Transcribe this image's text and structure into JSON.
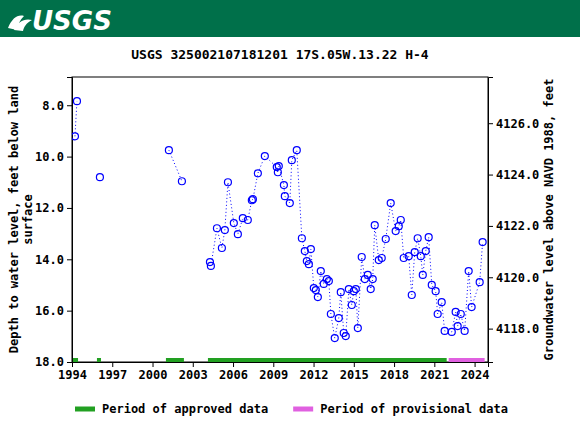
{
  "header": {
    "text": "USGS"
  },
  "chart_data": {
    "type": "scatter",
    "title": "USGS 325002107181201 17S.05W.13.22 H-4",
    "ylabel": [
      "Depth to water level, feet below land",
      "surface"
    ],
    "y2label": "Groundwater level above NAVD 1988, feet",
    "xlim": [
      1994,
      2025
    ],
    "xticks": [
      1994,
      1997,
      2000,
      2003,
      2006,
      2009,
      2012,
      2015,
      2018,
      2021,
      2024
    ],
    "ylim": [
      18.0,
      6.9
    ],
    "yticks": [
      {
        "value": 8,
        "label": "8.0"
      },
      {
        "value": 10,
        "label": "10.0"
      },
      {
        "value": 12,
        "label": "12.0"
      },
      {
        "value": 14,
        "label": "14.0"
      },
      {
        "value": 16,
        "label": "16.0"
      },
      {
        "value": 18,
        "label": "18.0"
      }
    ],
    "y2lim": [
      4116.7,
      4127.8
    ],
    "y2ticks": [
      {
        "value": 4118,
        "label": "4118.0"
      },
      {
        "value": 4120,
        "label": "4120.0"
      },
      {
        "value": 4122,
        "label": "4122.0"
      },
      {
        "value": 4124,
        "label": "4124.0"
      },
      {
        "value": 4126,
        "label": "4126.0"
      }
    ],
    "grid": false,
    "legend": "bottom",
    "x": [
      1994.22,
      1994.37,
      null,
      1996.08,
      null,
      2001.22,
      2002.19,
      null,
      2004.28,
      2004.35,
      2004.8,
      2005.17,
      2005.39,
      2005.62,
      2006.06,
      2006.36,
      2006.73,
      2007.1,
      2007.4,
      2007.48,
      2007.85,
      2008.37,
      2009.26,
      2009.34,
      2009.41,
      2009.79,
      2009.86,
      2010.23,
      2010.38,
      2010.75,
      2011.13,
      2011.35,
      2011.5,
      2011.65,
      2011.8,
      2012.02,
      2012.17,
      2012.32,
      2012.54,
      2012.76,
      2012.99,
      2013.14,
      2013.29,
      2013.58,
      2013.88,
      2014.03,
      2014.25,
      2014.4,
      2014.63,
      2014.85,
      2015.0,
      2015.15,
      2015.3,
      2015.59,
      2015.82,
      2016.04,
      2016.26,
      2016.41,
      2016.56,
      2016.86,
      2017.08,
      2017.38,
      2017.75,
      2018.12,
      2018.35,
      2018.5,
      2018.72,
      2019.09,
      2019.32,
      2019.54,
      2019.76,
      2019.99,
      2020.14,
      2020.36,
      2020.58,
      2020.81,
      2021.1,
      2021.25,
      2021.55,
      2021.77,
      2022.3,
      2022.59,
      2022.74,
      2022.97,
      2023.26,
      2023.56,
      2023.78,
      2024.38,
      2024.6
    ],
    "series": [
      {
        "type": "scatter",
        "color": "#0000ff",
        "marker": "circle",
        "line_style": "dotted",
        "values": [
          9.21,
          7.84,
          null,
          10.8,
          null,
          9.75,
          10.96,
          null,
          14.11,
          14.26,
          12.79,
          13.56,
          12.86,
          11.0,
          12.59,
          13.02,
          12.4,
          12.47,
          11.7,
          11.66,
          10.65,
          9.98,
          10.41,
          10.61,
          10.37,
          11.11,
          11.54,
          11.81,
          10.14,
          9.75,
          13.18,
          13.68,
          14.07,
          14.19,
          13.6,
          15.12,
          15.2,
          15.47,
          14.46,
          14.96,
          14.77,
          14.85,
          16.13,
          17.07,
          16.29,
          15.28,
          16.87,
          16.99,
          15.16,
          15.78,
          15.24,
          15.16,
          16.68,
          13.91,
          14.77,
          14.61,
          15.16,
          14.77,
          12.67,
          14.03,
          13.95,
          13.21,
          11.81,
          12.9,
          12.71,
          12.47,
          13.95,
          13.88,
          15.39,
          13.72,
          13.18,
          13.88,
          14.61,
          13.68,
          13.14,
          15.0,
          15.24,
          16.13,
          15.67,
          16.79,
          16.83,
          16.05,
          16.6,
          16.13,
          16.79,
          14.46,
          15.86,
          14.89,
          13.33
        ]
      },
      {
        "name": "Period of approved data",
        "type": "period",
        "color": "#22a022",
        "ranges": [
          [
            1994.07,
            1994.45
          ],
          [
            1995.86,
            1996.16
          ],
          [
            2001.0,
            2002.34
          ],
          [
            2004.13,
            2021.92
          ]
        ]
      },
      {
        "name": "Period of provisional data",
        "type": "period",
        "color": "#e060e0",
        "ranges": [
          [
            2022.07,
            2024.75
          ]
        ]
      }
    ]
  }
}
